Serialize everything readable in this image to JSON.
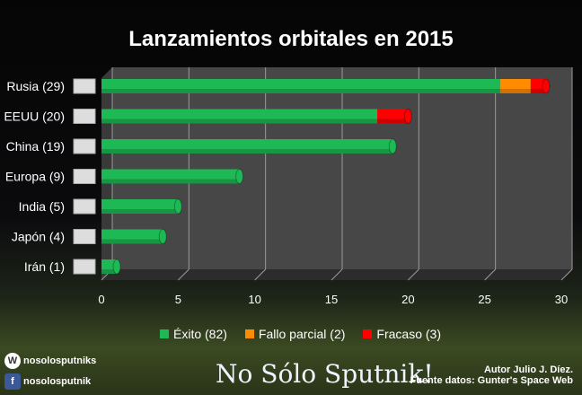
{
  "chart_data": {
    "type": "bar",
    "orientation": "horizontal",
    "stacked": true,
    "title": "Lanzamientos orbitales en 2015",
    "categories": [
      "Rusia (29)",
      "EEUU (20)",
      "China (19)",
      "Europa (9)",
      "India (5)",
      "Japón (4)",
      "Irán (1)"
    ],
    "series": [
      {
        "name": "Éxito (82)",
        "color": "#1db954",
        "values": [
          26,
          18,
          19,
          9,
          5,
          4,
          1
        ]
      },
      {
        "name": "Fallo parcial (2)",
        "color": "#ff8c00",
        "values": [
          2,
          0,
          0,
          0,
          0,
          0,
          0
        ]
      },
      {
        "name": "Fracaso (3)",
        "color": "#ff0000",
        "values": [
          1,
          2,
          0,
          0,
          0,
          0,
          0
        ]
      }
    ],
    "xlim": [
      0,
      30
    ],
    "xticks": [
      "0",
      "5",
      "10",
      "15",
      "20",
      "25",
      "30"
    ],
    "grid": true,
    "legend": "bottom"
  },
  "flags": [
    "russia-flag",
    "usa-flag",
    "china-flag",
    "eu-flag",
    "india-flag",
    "japan-flag",
    "iran-flag"
  ],
  "footer": {
    "wordpress": "nosolosputniks",
    "facebook": "nosolosputnik",
    "brand": "No Sólo Sputnik!",
    "author": "Autor Julio J. Díez.",
    "source": "Fuente datos: Gunter's Space Web"
  }
}
